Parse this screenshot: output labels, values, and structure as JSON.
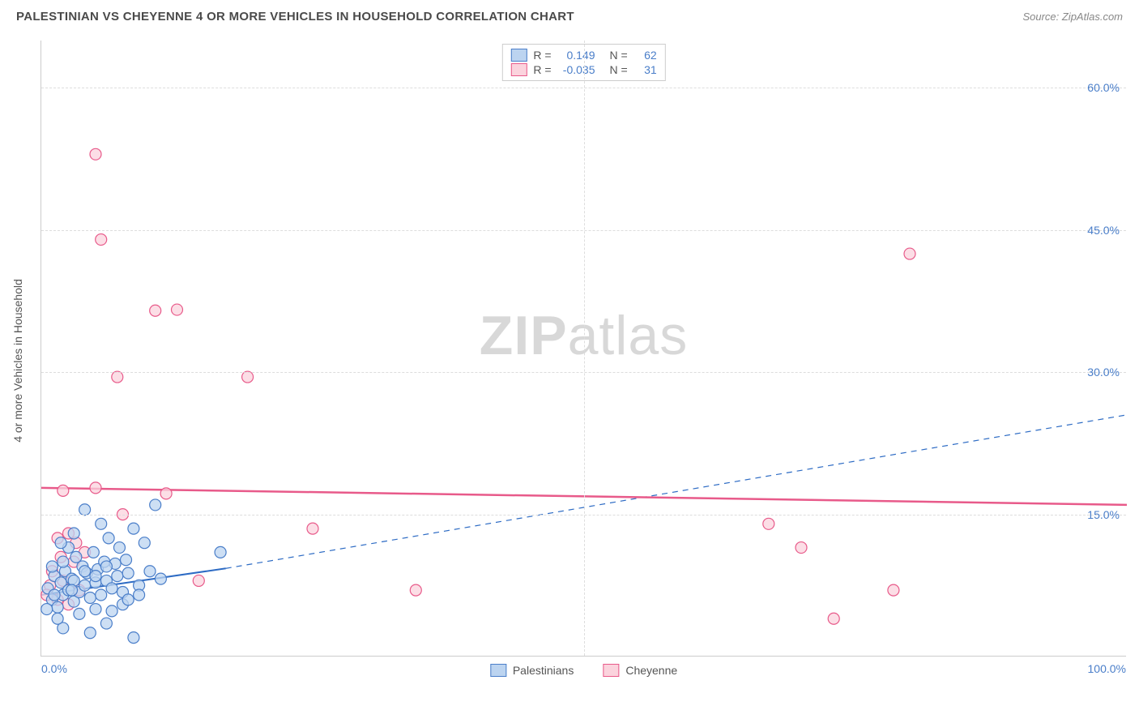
{
  "header": {
    "title": "PALESTINIAN VS CHEYENNE 4 OR MORE VEHICLES IN HOUSEHOLD CORRELATION CHART",
    "source": "Source: ZipAtlas.com"
  },
  "chart": {
    "type": "scatter",
    "y_axis_label": "4 or more Vehicles in Household",
    "watermark": "ZIPatlas",
    "background_color": "#ffffff",
    "grid_color": "#dddddd",
    "axis_color": "#cccccc",
    "tick_label_color": "#4a7ec9",
    "xlim": [
      0,
      100
    ],
    "ylim": [
      0,
      65
    ],
    "x_ticks": [
      {
        "value": 0,
        "label": "0.0%"
      },
      {
        "value": 100,
        "label": "100.0%"
      }
    ],
    "x_gridlines": [
      50
    ],
    "y_ticks": [
      {
        "value": 15,
        "label": "15.0%"
      },
      {
        "value": 30,
        "label": "30.0%"
      },
      {
        "value": 45,
        "label": "45.0%"
      },
      {
        "value": 60,
        "label": "60.0%"
      }
    ],
    "stats": [
      {
        "r_label": "R =",
        "r": "0.149",
        "n_label": "N =",
        "n": "62",
        "swatch_fill": "#bcd4f0",
        "swatch_border": "#4a7ec9"
      },
      {
        "r_label": "R =",
        "r": "-0.035",
        "n_label": "N =",
        "n": "31",
        "swatch_fill": "#fbd3dd",
        "swatch_border": "#e85a8a"
      }
    ],
    "legend": [
      {
        "label": "Palestinians",
        "swatch_fill": "#bcd4f0",
        "swatch_border": "#4a7ec9"
      },
      {
        "label": "Cheyenne",
        "swatch_fill": "#fbd3dd",
        "swatch_border": "#e85a8a"
      }
    ],
    "series": [
      {
        "name": "Palestinians",
        "marker_fill": "#bcd4f0",
        "marker_stroke": "#4a7ec9",
        "marker_opacity": 0.75,
        "marker_radius": 7,
        "trend": {
          "x1": 0,
          "y1": 6.5,
          "x2": 17,
          "y2": 9.3,
          "solid_until_x": 17,
          "dashed_to_x": 100,
          "y_at_100": 25.5,
          "color": "#2d6bc4",
          "width": 2
        },
        "points": [
          [
            0.6,
            7.2
          ],
          [
            1.0,
            6.0
          ],
          [
            1.2,
            8.5
          ],
          [
            1.5,
            5.2
          ],
          [
            1.8,
            7.8
          ],
          [
            2.0,
            6.5
          ],
          [
            2.2,
            9.0
          ],
          [
            2.5,
            7.0
          ],
          [
            2.8,
            8.2
          ],
          [
            3.0,
            5.8
          ],
          [
            3.2,
            10.5
          ],
          [
            3.5,
            6.8
          ],
          [
            3.8,
            9.5
          ],
          [
            4.0,
            7.5
          ],
          [
            4.2,
            8.8
          ],
          [
            4.5,
            6.2
          ],
          [
            4.8,
            11.0
          ],
          [
            5.0,
            7.8
          ],
          [
            5.2,
            9.2
          ],
          [
            5.5,
            6.5
          ],
          [
            5.8,
            10.0
          ],
          [
            6.0,
            8.0
          ],
          [
            6.2,
            12.5
          ],
          [
            6.5,
            7.2
          ],
          [
            6.8,
            9.8
          ],
          [
            7.0,
            8.5
          ],
          [
            7.2,
            11.5
          ],
          [
            7.5,
            6.8
          ],
          [
            7.8,
            10.2
          ],
          [
            8.0,
            8.8
          ],
          [
            8.5,
            13.5
          ],
          [
            9.0,
            7.5
          ],
          [
            9.5,
            12.0
          ],
          [
            10.0,
            9.0
          ],
          [
            10.5,
            16.0
          ],
          [
            11.0,
            8.2
          ],
          [
            2.0,
            3.0
          ],
          [
            4.5,
            2.5
          ],
          [
            6.0,
            3.5
          ],
          [
            8.5,
            2.0
          ],
          [
            3.0,
            13.0
          ],
          [
            4.0,
            15.5
          ],
          [
            5.5,
            14.0
          ],
          [
            2.5,
            11.5
          ],
          [
            1.5,
            4.0
          ],
          [
            3.5,
            4.5
          ],
          [
            5.0,
            5.0
          ],
          [
            6.5,
            4.8
          ],
          [
            7.5,
            5.5
          ],
          [
            8.0,
            6.0
          ],
          [
            9.0,
            6.5
          ],
          [
            1.0,
            9.5
          ],
          [
            2.0,
            10.0
          ],
          [
            1.8,
            12.0
          ],
          [
            3.0,
            8.0
          ],
          [
            4.0,
            9.0
          ],
          [
            5.0,
            8.5
          ],
          [
            6.0,
            9.5
          ],
          [
            16.5,
            11.0
          ],
          [
            0.5,
            5.0
          ],
          [
            1.2,
            6.5
          ],
          [
            2.8,
            7.0
          ]
        ]
      },
      {
        "name": "Cheyenne",
        "marker_fill": "#fbd3dd",
        "marker_stroke": "#e85a8a",
        "marker_opacity": 0.75,
        "marker_radius": 7,
        "trend": {
          "x1": 0,
          "y1": 17.8,
          "x2": 100,
          "y2": 16.0,
          "color": "#e85a8a",
          "width": 2.5
        },
        "points": [
          [
            5.0,
            53.0
          ],
          [
            5.5,
            44.0
          ],
          [
            7.0,
            29.5
          ],
          [
            10.5,
            36.5
          ],
          [
            12.5,
            36.6
          ],
          [
            19.0,
            29.5
          ],
          [
            2.0,
            17.5
          ],
          [
            5.0,
            17.8
          ],
          [
            7.5,
            15.0
          ],
          [
            11.5,
            17.2
          ],
          [
            1.5,
            12.5
          ],
          [
            2.5,
            13.0
          ],
          [
            4.0,
            11.0
          ],
          [
            3.0,
            10.0
          ],
          [
            1.0,
            9.0
          ],
          [
            2.0,
            8.0
          ],
          [
            3.5,
            7.0
          ],
          [
            1.5,
            6.0
          ],
          [
            2.5,
            5.5
          ],
          [
            14.5,
            8.0
          ],
          [
            25.0,
            13.5
          ],
          [
            34.5,
            7.0
          ],
          [
            67.0,
            14.0
          ],
          [
            70.0,
            11.5
          ],
          [
            73.0,
            4.0
          ],
          [
            78.5,
            7.0
          ],
          [
            80.0,
            42.5
          ],
          [
            0.8,
            7.5
          ],
          [
            1.8,
            10.5
          ],
          [
            0.5,
            6.5
          ],
          [
            3.2,
            12.0
          ]
        ]
      }
    ]
  }
}
